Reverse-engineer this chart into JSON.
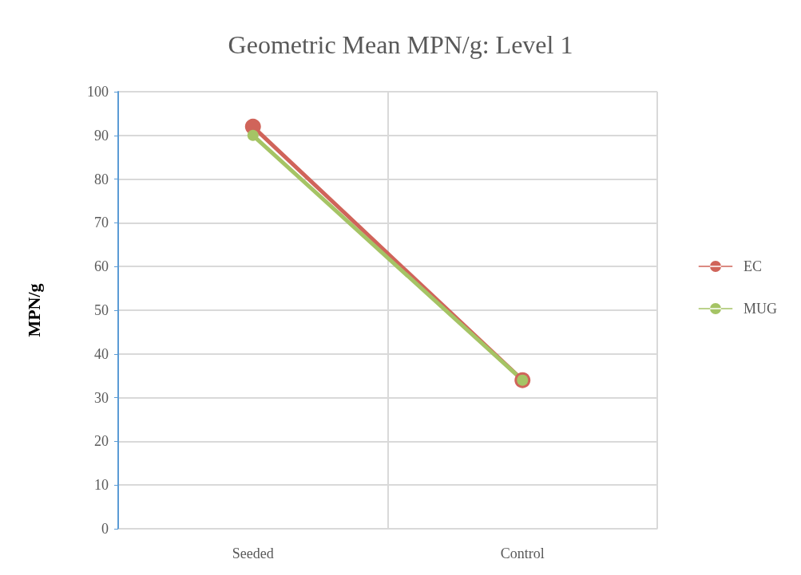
{
  "chart_data": {
    "type": "line",
    "title": "Geometric Mean MPN/g: Level 1",
    "ylabel": "MPN/g",
    "categories": [
      "Seeded",
      "Control"
    ],
    "series": [
      {
        "name": "EC",
        "color": "#d0645a",
        "values": [
          92,
          34
        ]
      },
      {
        "name": "MUG",
        "color": "#a5c465",
        "values": [
          90,
          34
        ]
      }
    ],
    "ylim": [
      0,
      100
    ],
    "yticks": [
      0,
      10,
      20,
      30,
      40,
      50,
      60,
      70,
      80,
      90,
      100
    ],
    "grid": true,
    "legend": "right",
    "marker": "circle",
    "line_style": "solid"
  }
}
